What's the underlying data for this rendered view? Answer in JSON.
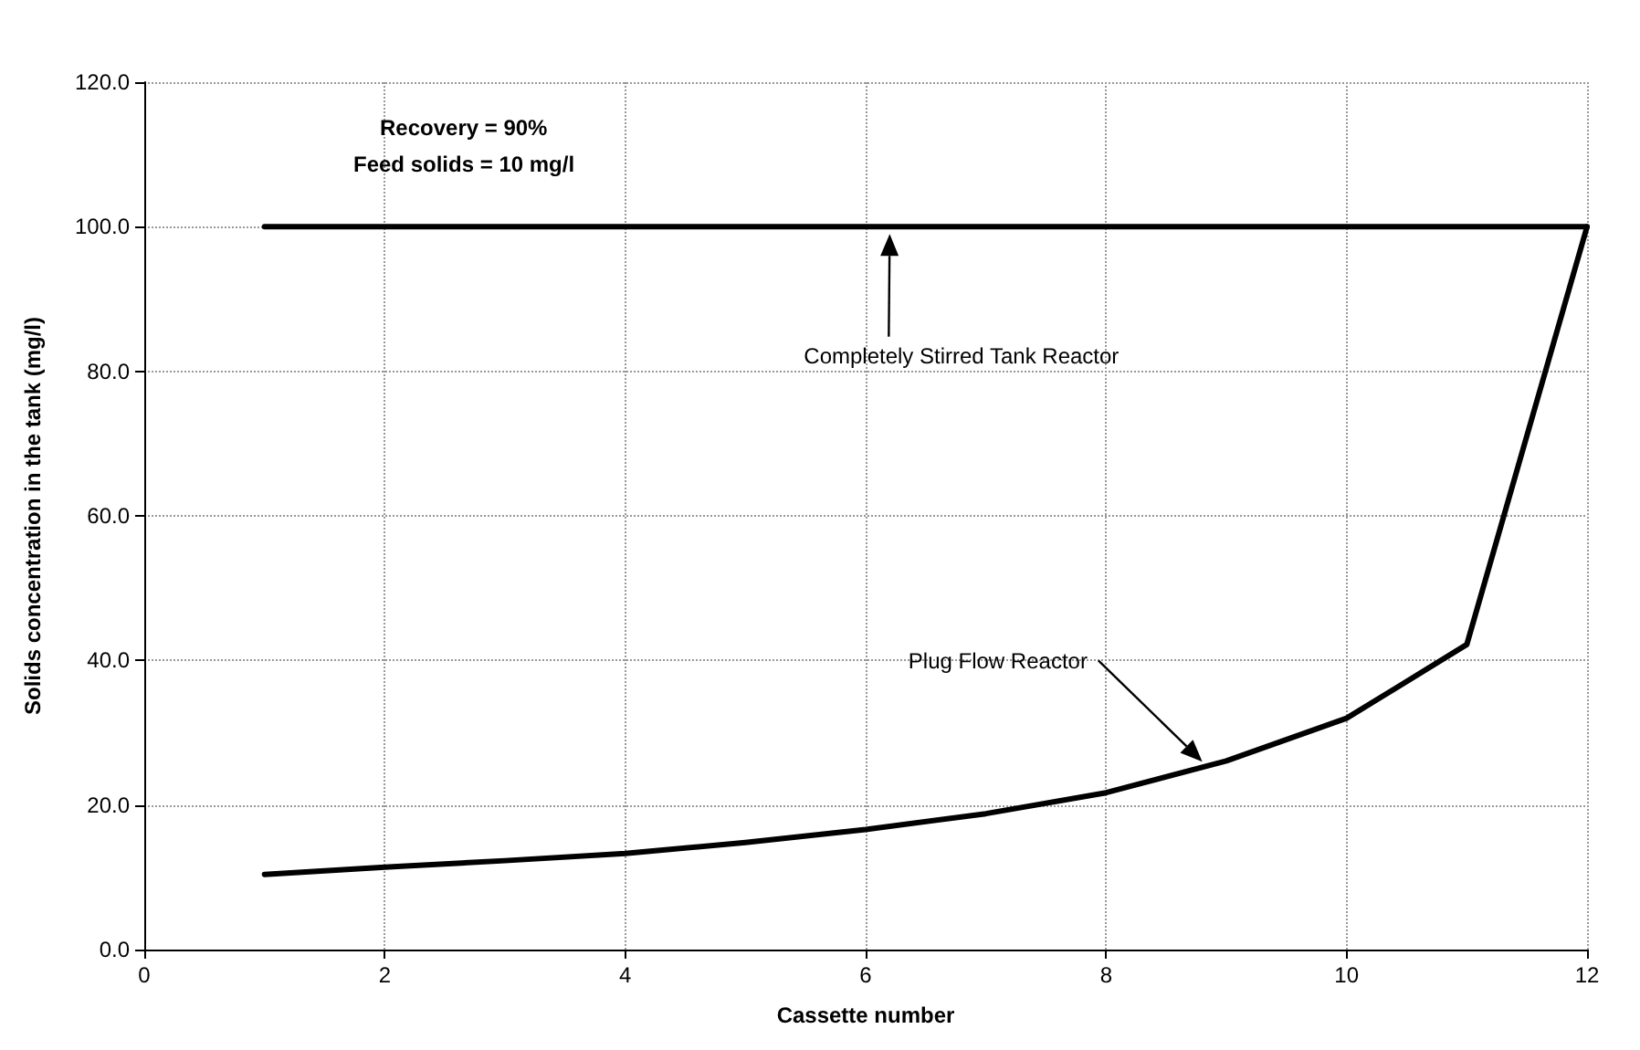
{
  "chart_data": {
    "type": "line",
    "xlabel": "Cassette number",
    "ylabel": "Solids concentration in the tank (mg/l)",
    "x": [
      1,
      2,
      3,
      4,
      5,
      6,
      7,
      8,
      9,
      10,
      11,
      12
    ],
    "series": [
      {
        "color": "#000000",
        "values": [
          100,
          100,
          100,
          100,
          100,
          100,
          100,
          100,
          100,
          100,
          100,
          100
        ]
      },
      {
        "color": "#000000",
        "values": [
          10.4,
          11.4,
          12.3,
          13.3,
          14.8,
          16.6,
          18.8,
          21.7,
          26.1,
          32.0,
          42.2,
          100
        ]
      }
    ],
    "xlim": [
      0,
      12
    ],
    "xticks": [
      0,
      2,
      4,
      6,
      8,
      10,
      12
    ],
    "ylim": [
      0,
      120
    ],
    "yticks": [
      {
        "value": 0,
        "label": "0.0"
      },
      {
        "value": 20,
        "label": "20.0"
      },
      {
        "value": 40,
        "label": "40.0"
      },
      {
        "value": 60,
        "label": "60.0"
      },
      {
        "value": 80,
        "label": "80.0"
      },
      {
        "value": 100,
        "label": "100.0"
      },
      {
        "value": 120,
        "label": "120.0"
      }
    ],
    "annotations": [
      "Recovery = 90%",
      "Feed solids = 10 mg/l",
      "Completely Stirred Tank Reactor",
      "Plug Flow Reactor"
    ],
    "grid": true,
    "marker": "none",
    "line_style": "solid"
  }
}
